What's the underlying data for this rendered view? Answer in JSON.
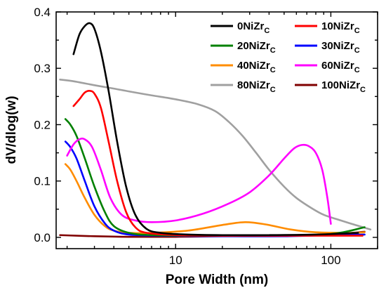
{
  "chart_data": {
    "type": "line",
    "xlabel": "Pore Width (nm)",
    "ylabel": "dV/dlog(w)",
    "xscale": "log",
    "xlim": [
      1.7,
      200
    ],
    "ylim": [
      -0.02,
      0.4
    ],
    "xticks": [
      {
        "value": 10,
        "label": "10"
      },
      {
        "value": 100,
        "label": "100"
      }
    ],
    "yticks": [
      {
        "value": 0.0,
        "label": "0.0"
      },
      {
        "value": 0.1,
        "label": "0.1"
      },
      {
        "value": 0.2,
        "label": "0.2"
      },
      {
        "value": 0.3,
        "label": "0.3"
      },
      {
        "value": 0.4,
        "label": "0.4"
      }
    ],
    "grid": false,
    "legend_position": "top-right",
    "series": [
      {
        "name_main": "0NiZr",
        "name_sub": "C",
        "color": "#000000",
        "points": [
          [
            2.2,
            0.325
          ],
          [
            2.4,
            0.36
          ],
          [
            2.6,
            0.375
          ],
          [
            2.8,
            0.38
          ],
          [
            3.0,
            0.37
          ],
          [
            3.3,
            0.33
          ],
          [
            3.7,
            0.26
          ],
          [
            4.2,
            0.17
          ],
          [
            4.8,
            0.09
          ],
          [
            5.5,
            0.04
          ],
          [
            6.5,
            0.015
          ],
          [
            8,
            0.008
          ],
          [
            12,
            0.005
          ],
          [
            20,
            0.004
          ],
          [
            40,
            0.004
          ],
          [
            80,
            0.005
          ],
          [
            150,
            0.008
          ]
        ]
      },
      {
        "name_main": "10NiZr",
        "name_sub": "C",
        "color": "#ff0000",
        "points": [
          [
            2.2,
            0.233
          ],
          [
            2.4,
            0.245
          ],
          [
            2.6,
            0.257
          ],
          [
            2.8,
            0.26
          ],
          [
            3.0,
            0.255
          ],
          [
            3.3,
            0.23
          ],
          [
            3.7,
            0.17
          ],
          [
            4.2,
            0.1
          ],
          [
            4.8,
            0.045
          ],
          [
            5.5,
            0.018
          ],
          [
            6.5,
            0.008
          ],
          [
            10,
            0.004
          ],
          [
            20,
            0.003
          ],
          [
            40,
            0.003
          ],
          [
            80,
            0.003
          ],
          [
            160,
            0.003
          ]
        ]
      },
      {
        "name_main": "20NiZr",
        "name_sub": "C",
        "color": "#008000",
        "points": [
          [
            1.95,
            0.21
          ],
          [
            2.1,
            0.2
          ],
          [
            2.3,
            0.18
          ],
          [
            2.6,
            0.14
          ],
          [
            3.0,
            0.09
          ],
          [
            3.5,
            0.045
          ],
          [
            4.0,
            0.02
          ],
          [
            5.0,
            0.008
          ],
          [
            7,
            0.004
          ],
          [
            15,
            0.003
          ],
          [
            40,
            0.003
          ],
          [
            100,
            0.006
          ],
          [
            165,
            0.018
          ]
        ]
      },
      {
        "name_main": "30NiZr",
        "name_sub": "C",
        "color": "#0000ff",
        "points": [
          [
            1.95,
            0.17
          ],
          [
            2.1,
            0.16
          ],
          [
            2.3,
            0.14
          ],
          [
            2.6,
            0.1
          ],
          [
            3.0,
            0.055
          ],
          [
            3.5,
            0.025
          ],
          [
            4.0,
            0.012
          ],
          [
            5.0,
            0.005
          ],
          [
            8,
            0.003
          ],
          [
            20,
            0.002
          ],
          [
            50,
            0.002
          ],
          [
            100,
            0.004
          ],
          [
            165,
            0.005
          ]
        ]
      },
      {
        "name_main": "40NiZr",
        "name_sub": "C",
        "color": "#ff8c00",
        "points": [
          [
            1.95,
            0.13
          ],
          [
            2.1,
            0.12
          ],
          [
            2.3,
            0.1
          ],
          [
            2.6,
            0.07
          ],
          [
            3.0,
            0.04
          ],
          [
            3.5,
            0.02
          ],
          [
            4.0,
            0.012
          ],
          [
            5,
            0.008
          ],
          [
            7,
            0.008
          ],
          [
            12,
            0.012
          ],
          [
            20,
            0.022
          ],
          [
            28,
            0.027
          ],
          [
            38,
            0.023
          ],
          [
            55,
            0.014
          ],
          [
            80,
            0.009
          ],
          [
            130,
            0.008
          ],
          [
            165,
            0.009
          ]
        ]
      },
      {
        "name_main": "60NiZr",
        "name_sub": "C",
        "color": "#ff00ff",
        "points": [
          [
            2.0,
            0.145
          ],
          [
            2.2,
            0.165
          ],
          [
            2.4,
            0.174
          ],
          [
            2.6,
            0.174
          ],
          [
            2.9,
            0.16
          ],
          [
            3.3,
            0.12
          ],
          [
            3.8,
            0.07
          ],
          [
            4.5,
            0.04
          ],
          [
            5.5,
            0.03
          ],
          [
            7,
            0.027
          ],
          [
            10,
            0.03
          ],
          [
            15,
            0.042
          ],
          [
            22,
            0.06
          ],
          [
            30,
            0.08
          ],
          [
            40,
            0.11
          ],
          [
            50,
            0.14
          ],
          [
            58,
            0.158
          ],
          [
            65,
            0.164
          ],
          [
            72,
            0.162
          ],
          [
            80,
            0.15
          ],
          [
            88,
            0.12
          ],
          [
            95,
            0.07
          ],
          [
            100,
            0.024
          ]
        ]
      },
      {
        "name_main": "80NiZr",
        "name_sub": "C",
        "color": "#a0a0a0",
        "points": [
          [
            1.8,
            0.28
          ],
          [
            2.2,
            0.277
          ],
          [
            3,
            0.27
          ],
          [
            4,
            0.264
          ],
          [
            5,
            0.259
          ],
          [
            7,
            0.252
          ],
          [
            10,
            0.245
          ],
          [
            14,
            0.236
          ],
          [
            18,
            0.224
          ],
          [
            22,
            0.205
          ],
          [
            27,
            0.18
          ],
          [
            33,
            0.15
          ],
          [
            40,
            0.12
          ],
          [
            50,
            0.09
          ],
          [
            60,
            0.07
          ],
          [
            75,
            0.052
          ],
          [
            90,
            0.04
          ],
          [
            110,
            0.032
          ],
          [
            140,
            0.023
          ],
          [
            180,
            0.014
          ]
        ]
      },
      {
        "name_main": "100NiZr",
        "name_sub": "C",
        "color": "#800000",
        "points": [
          [
            1.8,
            0.004
          ],
          [
            3,
            0.002
          ],
          [
            5,
            0.001
          ],
          [
            10,
            0.001
          ],
          [
            20,
            0.002
          ],
          [
            50,
            0.003
          ],
          [
            100,
            0.005
          ],
          [
            165,
            0.01
          ]
        ]
      }
    ]
  }
}
